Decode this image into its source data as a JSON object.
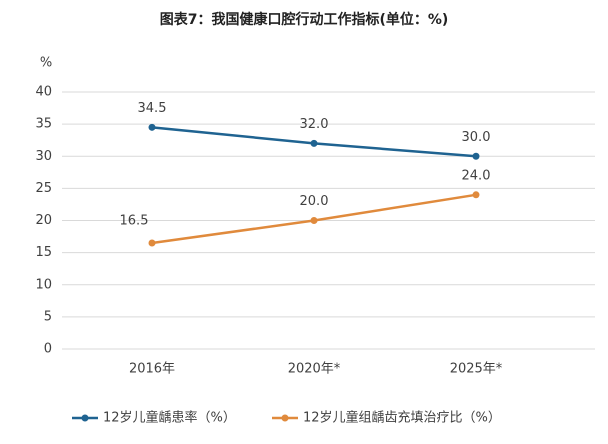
{
  "chart_data": {
    "type": "line",
    "title": "图表7：我国健康口腔行动工作指标(单位：%)",
    "y_label": "%",
    "categories": [
      "2016年",
      "2020年*",
      "2025年*"
    ],
    "series": [
      {
        "name": "12岁儿童龋患率（%）",
        "color": "#1f6391",
        "values": [
          34.5,
          32.0,
          30.0
        ],
        "value_labels": [
          "34.5",
          "32.0",
          "30.0"
        ]
      },
      {
        "name": "12岁儿童组龋齿充填治疗比（%）",
        "color": "#e08a3c",
        "values": [
          16.5,
          20.0,
          24.0
        ],
        "value_labels": [
          "16.5",
          "20.0",
          "24.0"
        ]
      }
    ],
    "ylim": [
      0,
      40
    ],
    "yticks": [
      0,
      5,
      10,
      15,
      20,
      25,
      30,
      35,
      40
    ],
    "grid": true,
    "legend": "bottom"
  }
}
